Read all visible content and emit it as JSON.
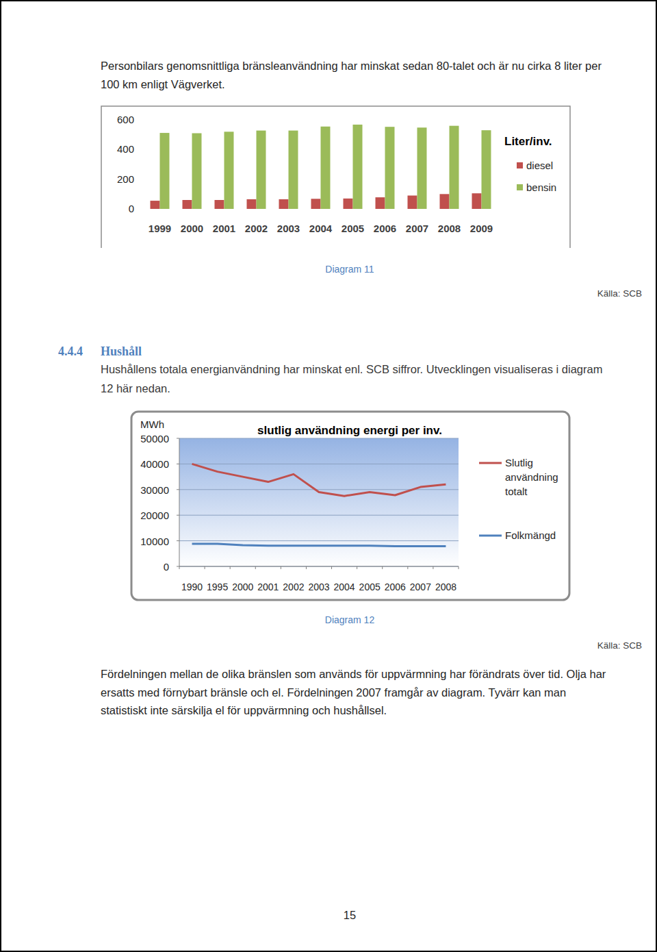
{
  "page": {
    "intro_lines": [
      "Personbilars genomsnittliga bränsleanvändning har minskat sedan 80-talet och är nu cirka 8 liter per",
      "100 km enligt Vägverket."
    ],
    "heading": {
      "number": "4.4.4",
      "title": "Hushåll"
    },
    "section_lines": [
      "Hushållens totala energianvändning har minskat enl. SCB siffror. Utvecklingen visualiseras i diagram",
      "12 här nedan."
    ],
    "closing_lines": [
      "Fördelningen mellan de olika bränslen som används för uppvärmning har förändrats över tid. Olja har",
      "ersatts med förnybart bränsle och el. Fördelningen 2007 framgår av diagram. Tyvärr kan man",
      "statistiskt inte särskilja el för uppvärmning och hushållsel."
    ],
    "page_number": 15
  },
  "chart_data": [
    {
      "type": "bar",
      "title": "Liter/inv.",
      "caption": "Diagram 11",
      "source": "Källa: SCB",
      "categories": [
        "1999",
        "2000",
        "2001",
        "2002",
        "2003",
        "2004",
        "2005",
        "2006",
        "2007",
        "2008",
        "2009"
      ],
      "series": [
        {
          "name": "diesel",
          "color": "#c0504d",
          "values": [
            55,
            60,
            60,
            65,
            65,
            68,
            70,
            78,
            90,
            100,
            105
          ]
        },
        {
          "name": "bensin",
          "color": "#9bbb59",
          "values": [
            512,
            510,
            520,
            528,
            528,
            555,
            568,
            553,
            548,
            560,
            530
          ]
        }
      ],
      "ylim": [
        0,
        600
      ],
      "yticks": [
        0,
        200,
        400,
        600
      ],
      "grid": false,
      "legend": "right"
    },
    {
      "type": "line",
      "title": "slutlig användning energi per inv.",
      "y_label": "MWh",
      "caption": "Diagram 12",
      "source": "Källa: SCB",
      "categories": [
        "1990",
        "1995",
        "2000",
        "2001",
        "2002",
        "2003",
        "2004",
        "2005",
        "2006",
        "2007",
        "2008"
      ],
      "series": [
        {
          "name": "Slutlig användning totalt",
          "color": "#c0504d",
          "values": [
            40000,
            37000,
            35000,
            33000,
            36000,
            29000,
            27500,
            29000,
            27800,
            31000,
            32000
          ]
        },
        {
          "name": "Folkmängd",
          "color": "#4f81bd",
          "values": [
            8800,
            8800,
            8300,
            8100,
            8100,
            8100,
            8100,
            8100,
            7900,
            7900,
            7900
          ]
        }
      ],
      "ylim": [
        0,
        50000
      ],
      "yticks": [
        0,
        10000,
        20000,
        30000,
        40000,
        50000
      ],
      "grid": true,
      "legend": "right"
    }
  ]
}
